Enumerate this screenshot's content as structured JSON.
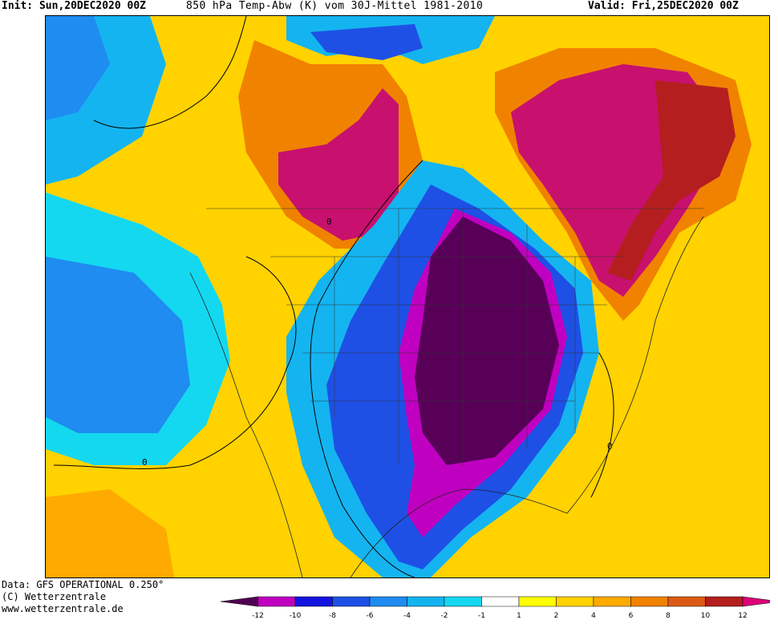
{
  "header": {
    "init": "Init: Sun,20DEC2020 00Z",
    "title": "850 hPa Temp-Abw (K) vom 30J-Mittel 1981-2010",
    "valid": "Valid: Fri,25DEC2020 00Z"
  },
  "footer": {
    "data_line": "Data: GFS OPERATIONAL 0.250°",
    "copyright": "(C) Wetterzentrale",
    "url": "www.wetterzentrale.de"
  },
  "contour_label": "0",
  "legend": {
    "ticks": [
      "-12",
      "-10",
      "-8",
      "-6",
      "-4",
      "-2",
      "-1",
      "1",
      "2",
      "4",
      "6",
      "8",
      "10",
      "12"
    ],
    "colors": [
      "#500050",
      "#c000c0",
      "#1414e0",
      "#1e50e6",
      "#1e8cf0",
      "#14b4f0",
      "#14d8f0",
      "#ffffff",
      "#ffff00",
      "#ffd200",
      "#ffaa00",
      "#f08200",
      "#dc5a14",
      "#b41e1e",
      "#dc0078"
    ]
  },
  "colors": {
    "very_cold": "#580058",
    "cold_edge": "#c000c0",
    "warm_max": "#c8106e",
    "warm_dark": "#b41e1e"
  }
}
